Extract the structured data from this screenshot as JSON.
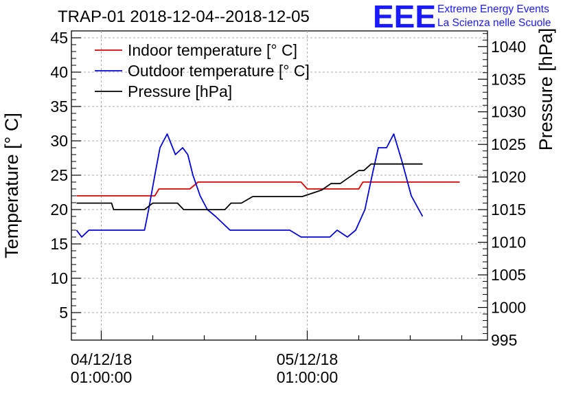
{
  "chart_data": {
    "type": "line",
    "title": "TRAP-01 2018-12-04--2018-12-05",
    "brand": {
      "logo": "EEE",
      "line1": "Extreme Energy Events",
      "line2": "La Scienza nelle Scuole",
      "color": "#1a1aff"
    },
    "x_axis": {
      "range_hours": [
        -2.9,
        37.5
      ],
      "ticks": [
        {
          "hour": 0,
          "date": "04/12/18",
          "time": "01:00:00"
        },
        {
          "hour": 20,
          "date": "05/12/18",
          "time": "01:00:00"
        }
      ],
      "grid_hours": [
        0,
        20
      ]
    },
    "y_left": {
      "label": "Temperature [° C]",
      "range": [
        1,
        46
      ],
      "major_ticks": [
        5,
        10,
        15,
        20,
        25,
        30,
        35,
        40,
        45
      ],
      "tick_labels": [
        "5",
        "10",
        "15",
        "20",
        "25",
        "30",
        "35",
        "40",
        "45"
      ]
    },
    "y_right": {
      "label": "Pressure [hPa]",
      "range": [
        995,
        1042.4
      ],
      "major_ticks": [
        995,
        1000,
        1005,
        1010,
        1015,
        1020,
        1025,
        1030,
        1035,
        1040
      ],
      "tick_labels": [
        "995",
        "1000",
        "1005",
        "1010",
        "1015",
        "1020",
        "1025",
        "1030",
        "1035",
        "1040"
      ]
    },
    "grid": true,
    "legend_position": "top-left",
    "series": [
      {
        "name": "Indoor temperature [° C]",
        "axis": "left",
        "color": "#dd0000",
        "points": [
          [
            -2.4,
            22
          ],
          [
            5.2,
            22
          ],
          [
            5.6,
            23
          ],
          [
            8.6,
            23
          ],
          [
            9.4,
            24
          ],
          [
            19.4,
            24
          ],
          [
            20,
            23
          ],
          [
            25,
            23
          ],
          [
            25.4,
            24
          ],
          [
            34.8,
            24
          ]
        ]
      },
      {
        "name": "Outdoor temperature [° C]",
        "axis": "left",
        "color": "#0000dd",
        "points": [
          [
            -2.4,
            17
          ],
          [
            -1.9,
            16
          ],
          [
            -1.2,
            17
          ],
          [
            4.2,
            17
          ],
          [
            4.6,
            20
          ],
          [
            5.2,
            25
          ],
          [
            5.7,
            29
          ],
          [
            6.4,
            31
          ],
          [
            7.2,
            28
          ],
          [
            7.9,
            29
          ],
          [
            8.4,
            28
          ],
          [
            8.9,
            25
          ],
          [
            9.6,
            22
          ],
          [
            10.3,
            20
          ],
          [
            11.1,
            19
          ],
          [
            12.5,
            17
          ],
          [
            18.3,
            17
          ],
          [
            19.4,
            16
          ],
          [
            22.2,
            16
          ],
          [
            22.9,
            17
          ],
          [
            23.9,
            16
          ],
          [
            24.7,
            17
          ],
          [
            25.6,
            20
          ],
          [
            26.3,
            25
          ],
          [
            26.9,
            29
          ],
          [
            27.7,
            29
          ],
          [
            28.4,
            31
          ],
          [
            29.2,
            27
          ],
          [
            30.1,
            22
          ],
          [
            31.2,
            19
          ]
        ]
      },
      {
        "name": "Pressure [hPa]",
        "axis": "right",
        "color": "#000000",
        "points": [
          [
            -2.4,
            1016
          ],
          [
            1,
            1016
          ],
          [
            1.2,
            1015
          ],
          [
            4.2,
            1015
          ],
          [
            5,
            1016
          ],
          [
            7.4,
            1016
          ],
          [
            8,
            1015
          ],
          [
            12,
            1015
          ],
          [
            12.6,
            1016
          ],
          [
            13.6,
            1016
          ],
          [
            14.7,
            1017
          ],
          [
            19.5,
            1017
          ],
          [
            21.4,
            1018
          ],
          [
            22.3,
            1019
          ],
          [
            23.2,
            1019
          ],
          [
            24.1,
            1020
          ],
          [
            25,
            1021
          ],
          [
            25.5,
            1021
          ],
          [
            26.2,
            1022
          ],
          [
            31.2,
            1022
          ]
        ]
      }
    ]
  }
}
